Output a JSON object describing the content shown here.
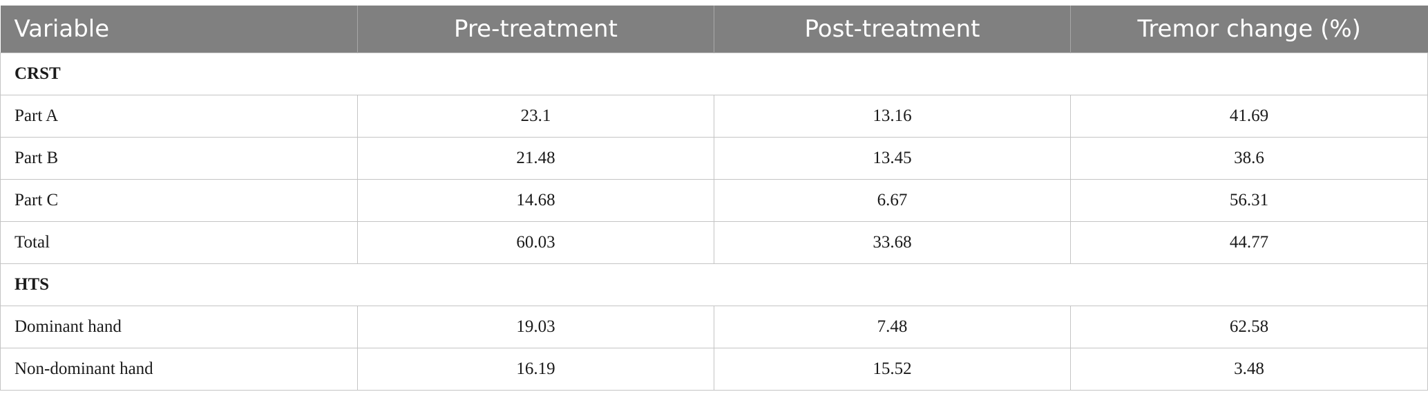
{
  "table": {
    "headers": [
      "Variable",
      "Pre-treatment",
      "Post-treatment",
      "Tremor change (%)"
    ],
    "sections": [
      {
        "title": "CRST",
        "rows": [
          {
            "label": "Part A",
            "pre": "23.1",
            "post": "13.16",
            "change": "41.69"
          },
          {
            "label": "Part B",
            "pre": "21.48",
            "post": "13.45",
            "change": "38.6"
          },
          {
            "label": "Part C",
            "pre": "14.68",
            "post": "6.67",
            "change": "56.31"
          },
          {
            "label": "Total",
            "pre": "60.03",
            "post": "33.68",
            "change": "44.77"
          }
        ]
      },
      {
        "title": "HTS",
        "rows": [
          {
            "label": "Dominant hand",
            "pre": "19.03",
            "post": "7.48",
            "change": "62.58"
          },
          {
            "label": "Non-dominant hand",
            "pre": "16.19",
            "post": "15.52",
            "change": "3.48"
          }
        ]
      }
    ]
  }
}
